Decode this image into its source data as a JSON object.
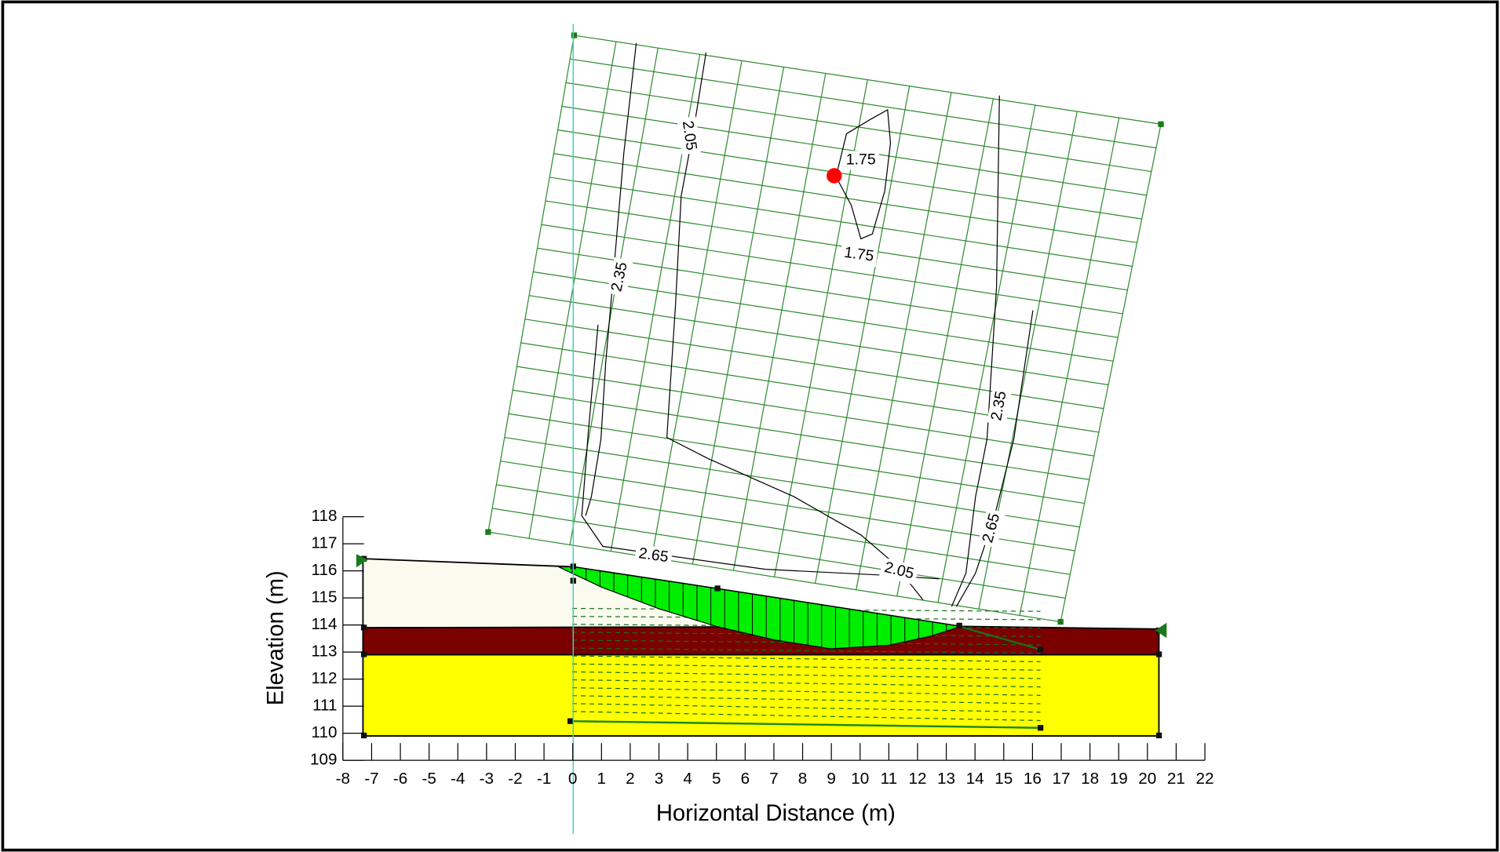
{
  "chart_data": {
    "type": "cross-section",
    "xlabel": "Horizontal Distance (m)",
    "ylabel": "Elevation (m)",
    "xlim": [
      -8,
      22
    ],
    "xticks": [
      -8,
      -7,
      -6,
      -5,
      -4,
      -3,
      -2,
      -1,
      0,
      1,
      2,
      3,
      4,
      5,
      6,
      7,
      8,
      9,
      10,
      11,
      12,
      13,
      14,
      15,
      16,
      17,
      18,
      19,
      20,
      21,
      22
    ],
    "ylim": [
      109,
      118
    ],
    "yticks": [
      109,
      110,
      111,
      112,
      113,
      114,
      115,
      116,
      117,
      118
    ],
    "layers": [
      {
        "color": "#fbfaef",
        "x": [
          -7.3,
          0,
          5,
          13.5,
          13.5,
          -7.3
        ],
        "y": [
          116.45,
          116.15,
          115.35,
          113.95,
          113.9,
          113.9
        ]
      },
      {
        "color": "#7b0000",
        "x": [
          -7.3,
          13.5,
          20.4,
          20.4,
          -7.3
        ],
        "y": [
          113.9,
          113.95,
          113.85,
          112.9,
          112.9
        ]
      },
      {
        "color": "#ffff00",
        "x": [
          -7.3,
          20.4,
          20.4,
          -7.3
        ],
        "y": [
          112.9,
          112.9,
          109.9,
          109.9
        ]
      }
    ],
    "slip_surface": {
      "color": "#00ee00",
      "x": [
        -0.5,
        1,
        3,
        5,
        7,
        9,
        11,
        12.5,
        13.5,
        5,
        0
      ],
      "y": [
        116.15,
        115.4,
        114.6,
        113.95,
        113.45,
        113.12,
        113.25,
        113.6,
        113.95,
        115.35,
        116.15
      ]
    },
    "critical_center": {
      "color": "#ff0000",
      "x": 9.1,
      "y": 130.6
    },
    "contour_labels": [
      1.75,
      1.75,
      2.05,
      2.05,
      2.35,
      2.35,
      2.65,
      2.65
    ]
  }
}
